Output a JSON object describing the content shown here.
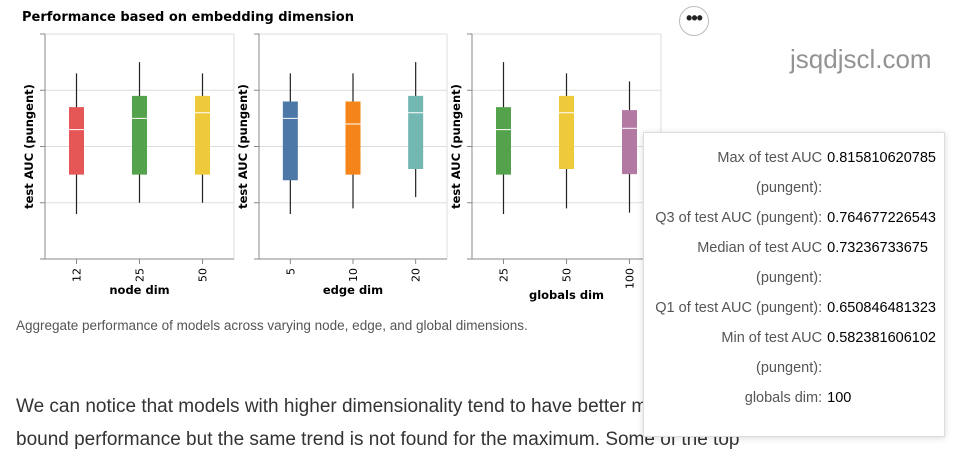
{
  "figure": {
    "title": "Performance based on embedding dimension",
    "caption": "Aggregate performance of models across varying node, edge, and global dimensions."
  },
  "more_button": {
    "icon": "more-horizontal-icon",
    "label": "•••"
  },
  "watermark": "jsqdjscl.com",
  "paragraph": "We can notice that models with higher dimensionality tend to have better mean and lower bound performance but the same trend is not found for the maximum. Some of the top",
  "tooltip": {
    "rows": [
      {
        "key": "Max of test AUC (pungent):",
        "value": "0.815810620785"
      },
      {
        "key": "Q3 of test AUC (pungent):",
        "value": "0.764677226543"
      },
      {
        "key": "Median of test AUC (pungent):",
        "value": "0.73236733675"
      },
      {
        "key": "Q1 of test AUC (pungent):",
        "value": "0.650846481323"
      },
      {
        "key": "Min of test AUC (pungent):",
        "value": "0.582381606102"
      },
      {
        "key": "globals dim:",
        "value": "100"
      }
    ]
  },
  "chart_data": [
    {
      "type": "boxplot",
      "xlabel": "node dim",
      "ylabel": "test AUC (pungent)",
      "categories": [
        "12",
        "25",
        "50"
      ],
      "colors": [
        "#e45756",
        "#54a24b",
        "#eeca3b"
      ],
      "boxes": [
        {
          "min": 0.58,
          "q1": 0.65,
          "median": 0.73,
          "q3": 0.77,
          "max": 0.83
        },
        {
          "min": 0.6,
          "q1": 0.65,
          "median": 0.75,
          "q3": 0.79,
          "max": 0.85
        },
        {
          "min": 0.6,
          "q1": 0.65,
          "median": 0.76,
          "q3": 0.79,
          "max": 0.83
        }
      ]
    },
    {
      "type": "boxplot",
      "xlabel": "edge dim",
      "ylabel": "test AUC (pungent)",
      "categories": [
        "5",
        "10",
        "20"
      ],
      "colors": [
        "#4c78a8",
        "#f58518",
        "#72b7b2"
      ],
      "boxes": [
        {
          "min": 0.58,
          "q1": 0.64,
          "median": 0.75,
          "q3": 0.78,
          "max": 0.83
        },
        {
          "min": 0.59,
          "q1": 0.65,
          "median": 0.74,
          "q3": 0.78,
          "max": 0.83
        },
        {
          "min": 0.61,
          "q1": 0.66,
          "median": 0.76,
          "q3": 0.79,
          "max": 0.85
        }
      ]
    },
    {
      "type": "boxplot",
      "xlabel": "globals dim",
      "ylabel": "test AUC (pungent)",
      "categories": [
        "25",
        "50",
        "100"
      ],
      "colors": [
        "#54a24b",
        "#eeca3b",
        "#b279a2"
      ],
      "boxes": [
        {
          "min": 0.58,
          "q1": 0.65,
          "median": 0.73,
          "q3": 0.77,
          "max": 0.85
        },
        {
          "min": 0.59,
          "q1": 0.66,
          "median": 0.76,
          "q3": 0.79,
          "max": 0.83
        },
        {
          "min": 0.582381606102,
          "q1": 0.650846481323,
          "median": 0.73236733675,
          "q3": 0.764677226543,
          "max": 0.815810620785
        }
      ]
    }
  ]
}
